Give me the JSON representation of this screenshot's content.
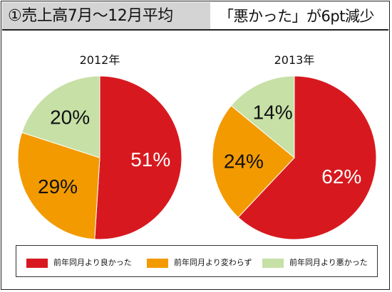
{
  "header": {
    "title": "①売上高7月～12月平均",
    "subtitle": "「悪かった」が6pt減少"
  },
  "colors": {
    "good": "#d7191f",
    "same": "#f29a00",
    "bad": "#c6e0a6"
  },
  "legend": [
    {
      "label": "前年同月より良かった",
      "color_key": "good"
    },
    {
      "label": "前年同月より変わらず",
      "color_key": "same"
    },
    {
      "label": "前年同月より悪かった",
      "color_key": "bad"
    }
  ],
  "chart_data": [
    {
      "type": "pie",
      "title": "2012年",
      "labels": [
        "前年同月より良かった",
        "前年同月より変わらず",
        "前年同月より悪かった"
      ],
      "values": [
        51,
        29,
        20
      ],
      "data_labels": [
        "51%",
        "29%",
        "20%"
      ]
    },
    {
      "type": "pie",
      "title": "2013年",
      "labels": [
        "前年同月より良かった",
        "前年同月より変わらず",
        "前年同月より悪かった"
      ],
      "values": [
        62,
        24,
        14
      ],
      "data_labels": [
        "62%",
        "24%",
        "14%"
      ]
    }
  ]
}
